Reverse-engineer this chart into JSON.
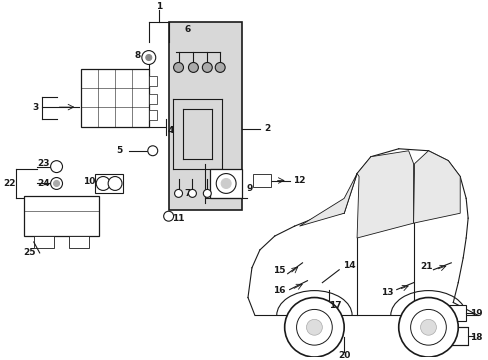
{
  "bg_color": "#ffffff",
  "lc": "#1a1a1a",
  "gray_fill": "#d8d8d8",
  "figsize": [
    4.89,
    3.6
  ],
  "dpi": 100,
  "fs": 6.5
}
